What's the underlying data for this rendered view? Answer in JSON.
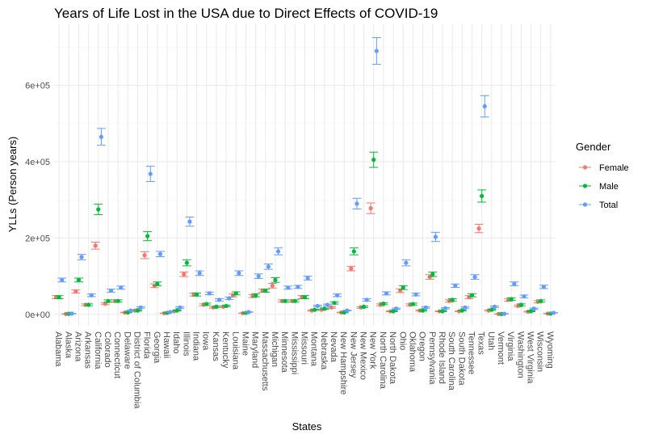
{
  "chart_data": {
    "type": "scatter",
    "title": "Years of Life Lost in the USA due to Direct Effects of COVID-19",
    "xlabel": "States",
    "ylabel": "YLLs (Person years)",
    "ylim": [
      -30000,
      760000
    ],
    "yticks": [
      0,
      200000,
      400000,
      600000
    ],
    "ytick_labels": [
      "0e+00",
      "2e+05",
      "4e+05",
      "6e+05"
    ],
    "grid": true,
    "legend": {
      "title": "Gender",
      "placement": "right"
    },
    "categories": [
      "Alabama",
      "Alaska",
      "Arizona",
      "Arkansas",
      "California",
      "Colorado",
      "Connecticut",
      "Delaware",
      "District of Columbia",
      "Florida",
      "Georgia",
      "Hawaii",
      "Idaho",
      "Illinois",
      "Indiana",
      "Iowa",
      "Kansas",
      "Kentucky",
      "Louisiana",
      "Maine",
      "Maryland",
      "Massachusetts",
      "Michigan",
      "Minnesota",
      "Mississippi",
      "Missouri",
      "Montana",
      "Nebraska",
      "Nevada",
      "New Hampshire",
      "New Jersey",
      "New Mexico",
      "New York",
      "North Carolina",
      "North Dakota",
      "Ohio",
      "Oklahoma",
      "Oregon",
      "Pennsylvania",
      "Rhode Island",
      "South Carolina",
      "South Dakota",
      "Tennessee",
      "Texas",
      "Utah",
      "Vermont",
      "Virginia",
      "Washington",
      "West Virginia",
      "Wisconsin",
      "Wyoming"
    ],
    "series": [
      {
        "name": "Female",
        "color": "#F8766D",
        "offset": -1,
        "values": [
          45000,
          1000,
          60000,
          25000,
          180000,
          28000,
          35000,
          5000,
          10000,
          155000,
          75000,
          3000,
          8000,
          105000,
          52000,
          25000,
          18000,
          20000,
          50000,
          3000,
          48000,
          62000,
          75000,
          35000,
          35000,
          45000,
          10000,
          12000,
          18000,
          5000,
          120000,
          18000,
          278000,
          25000,
          8000,
          62000,
          25000,
          10000,
          98000,
          8000,
          35000,
          8000,
          45000,
          225000,
          10000,
          1000,
          38000,
          22000,
          7000,
          33000,
          2000
        ],
        "errors": [
          4000,
          500,
          4000,
          2500,
          9000,
          2500,
          3000,
          800,
          1500,
          9000,
          5000,
          500,
          1000,
          6000,
          4000,
          2500,
          2000,
          2000,
          4000,
          500,
          4000,
          4000,
          6000,
          3000,
          3000,
          4000,
          1500,
          1500,
          2000,
          800,
          6000,
          2000,
          14000,
          2500,
          1000,
          5000,
          2500,
          1500,
          6000,
          1000,
          3000,
          1000,
          4000,
          11000,
          1500,
          300,
          3500,
          2500,
          1000,
          3000,
          500
        ],
        "lower": [
          41000,
          500,
          56000,
          22500,
          171000,
          25500,
          32000,
          4200,
          8500,
          146000,
          70000,
          2500,
          7000,
          99000,
          48000,
          22500,
          16000,
          18000,
          46000,
          2500,
          44000,
          58000,
          69000,
          32000,
          32000,
          41000,
          8500,
          10500,
          16000,
          4200,
          114000,
          16000,
          264000,
          22500,
          7000,
          57000,
          22500,
          8500,
          92000,
          7000,
          32000,
          7000,
          41000,
          214000,
          8500,
          700,
          34500,
          19500,
          6000,
          30000,
          1500
        ],
        "upper": [
          49000,
          1500,
          64000,
          27500,
          189000,
          30500,
          38000,
          5800,
          11500,
          164000,
          80000,
          3500,
          9000,
          111000,
          56000,
          27500,
          20000,
          22000,
          54000,
          3500,
          52000,
          66000,
          81000,
          38000,
          38000,
          49000,
          11500,
          13500,
          20000,
          5800,
          126000,
          20000,
          292000,
          27500,
          9000,
          67000,
          27500,
          11500,
          104000,
          9000,
          38000,
          9000,
          49000,
          236000,
          11500,
          1300,
          41500,
          24500,
          8000,
          36000,
          2500
        ]
      },
      {
        "name": "Male",
        "color": "#00BA38",
        "offset": 0,
        "values": [
          45000,
          1500,
          90000,
          25000,
          275000,
          35000,
          35000,
          5000,
          10000,
          205000,
          80000,
          4000,
          10000,
          135000,
          52000,
          27000,
          20000,
          22000,
          55000,
          4000,
          50000,
          62000,
          90000,
          35000,
          35000,
          45000,
          12000,
          15000,
          30000,
          5000,
          165000,
          20000,
          405000,
          28000,
          8000,
          70000,
          27000,
          10000,
          105000,
          8000,
          38000,
          10000,
          50000,
          310000,
          12000,
          1000,
          40000,
          25000,
          8000,
          35000,
          2000
        ],
        "errors": [
          4000,
          500,
          5000,
          2500,
          14000,
          3000,
          3000,
          800,
          1500,
          12000,
          5000,
          500,
          1000,
          8000,
          4000,
          2500,
          2000,
          2000,
          4000,
          500,
          4000,
          4000,
          6000,
          3000,
          3000,
          4000,
          1500,
          1500,
          3000,
          800,
          9000,
          2000,
          20000,
          2500,
          1000,
          5000,
          2500,
          1500,
          6000,
          1000,
          3000,
          1000,
          4000,
          16000,
          1500,
          300,
          3500,
          2500,
          1000,
          3000,
          500
        ],
        "lower": [
          41000,
          1000,
          85000,
          22500,
          261000,
          32000,
          32000,
          4200,
          8500,
          193000,
          75000,
          3500,
          9000,
          127000,
          48000,
          24500,
          18000,
          20000,
          51000,
          3500,
          46000,
          58000,
          84000,
          32000,
          32000,
          41000,
          10500,
          13500,
          27000,
          4200,
          156000,
          18000,
          385000,
          25500,
          7000,
          65000,
          24500,
          8500,
          99000,
          7000,
          35000,
          9000,
          46000,
          294000,
          10500,
          700,
          36500,
          22500,
          7000,
          32000,
          1500
        ],
        "upper": [
          49000,
          2000,
          95000,
          27500,
          289000,
          38000,
          38000,
          5800,
          11500,
          217000,
          85000,
          4500,
          11000,
          143000,
          56000,
          29500,
          22000,
          24000,
          59000,
          4500,
          54000,
          66000,
          96000,
          38000,
          38000,
          49000,
          13500,
          16500,
          33000,
          5800,
          174000,
          22000,
          425000,
          30500,
          9000,
          75000,
          29500,
          11500,
          111000,
          9000,
          41000,
          11000,
          54000,
          326000,
          13500,
          1300,
          43500,
          27500,
          9000,
          38000,
          2500
        ]
      },
      {
        "name": "Total",
        "color": "#619CFF",
        "offset": 1,
        "values": [
          90000,
          2000,
          150000,
          50000,
          465000,
          62000,
          70000,
          10000,
          18000,
          368000,
          158000,
          6000,
          18000,
          243000,
          108000,
          55000,
          38000,
          42000,
          108000,
          6000,
          100000,
          125000,
          165000,
          70000,
          72000,
          95000,
          22000,
          25000,
          50000,
          10000,
          290000,
          38000,
          690000,
          55000,
          15000,
          135000,
          52000,
          18000,
          203000,
          16000,
          75000,
          18000,
          98000,
          545000,
          20000,
          1500,
          80000,
          47000,
          15000,
          72000,
          4000
        ],
        "errors": [
          5000,
          600,
          7000,
          3500,
          22000,
          4000,
          4000,
          1000,
          2000,
          20000,
          7000,
          700,
          2000,
          12000,
          6000,
          3500,
          3000,
          3000,
          6000,
          700,
          6000,
          7000,
          9000,
          4000,
          4000,
          5000,
          2000,
          2000,
          3500,
          1000,
          14000,
          3000,
          35000,
          4000,
          1500,
          8000,
          3500,
          2000,
          12000,
          1500,
          4500,
          2000,
          6000,
          28000,
          2000,
          400,
          5000,
          3500,
          1500,
          4500,
          600
        ],
        "lower": [
          85000,
          1400,
          143000,
          46500,
          443000,
          58000,
          66000,
          9000,
          16000,
          348000,
          151000,
          5300,
          16000,
          231000,
          102000,
          51500,
          35000,
          39000,
          102000,
          5300,
          94000,
          118000,
          156000,
          66000,
          68000,
          90000,
          20000,
          23000,
          46500,
          9000,
          276000,
          35000,
          655000,
          51000,
          13500,
          127000,
          48500,
          16000,
          191000,
          14500,
          70500,
          16000,
          92000,
          517000,
          18000,
          1100,
          75000,
          43500,
          13500,
          67500,
          3400
        ],
        "upper": [
          95000,
          2600,
          157000,
          53500,
          487000,
          66000,
          74000,
          11000,
          20000,
          388000,
          165000,
          6700,
          20000,
          255000,
          114000,
          58500,
          41000,
          45000,
          114000,
          6700,
          106000,
          132000,
          174000,
          74000,
          76000,
          100000,
          24000,
          27000,
          53500,
          11000,
          304000,
          41000,
          725000,
          59000,
          16500,
          143000,
          55500,
          20000,
          215000,
          17500,
          79500,
          20000,
          104000,
          573000,
          22000,
          1900,
          85000,
          50500,
          16500,
          76500,
          4600
        ]
      }
    ]
  }
}
